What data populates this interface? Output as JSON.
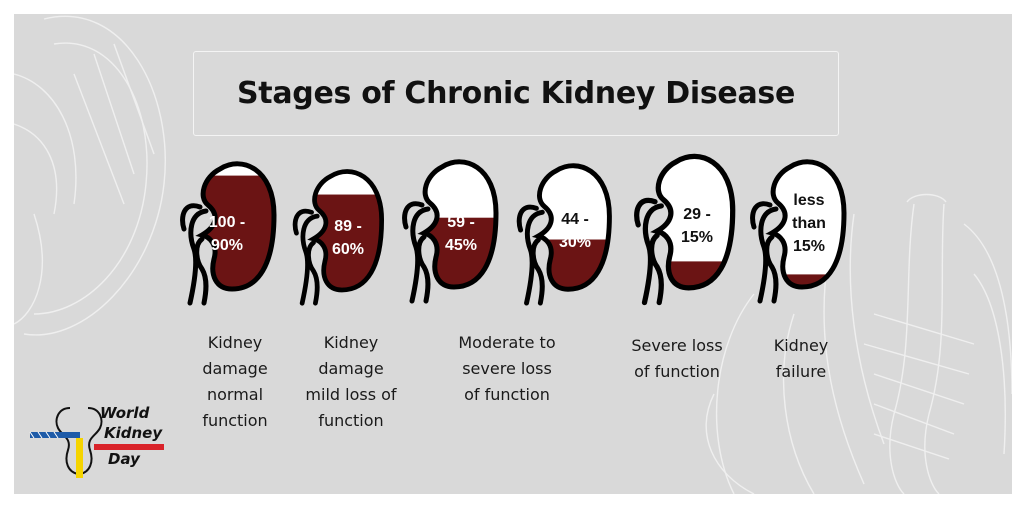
{
  "title": "Stages of Chronic Kidney Disease",
  "colors": {
    "background": "#d9d9d9",
    "kidney_fill": "#6b1414",
    "kidney_outline": "#000000",
    "kidney_empty": "#ffffff"
  },
  "stages": [
    {
      "range_lines": [
        "100 -",
        "90%"
      ],
      "fill_fraction": 0.9,
      "caption_lines": [
        "Kidney",
        "damage",
        "normal",
        "function"
      ]
    },
    {
      "range_lines": [
        "89 -",
        "60%"
      ],
      "fill_fraction": 0.8,
      "caption_lines": [
        "Kidney",
        "damage",
        "mild loss of",
        "function"
      ]
    },
    {
      "range_lines": [
        "59 -",
        "45%"
      ],
      "fill_fraction": 0.55,
      "caption_lines": []
    },
    {
      "range_lines": [
        "44 -",
        "30%"
      ],
      "fill_fraction": 0.4,
      "caption_lines": []
    },
    {
      "range_lines": [
        "29 -",
        "15%"
      ],
      "fill_fraction": 0.2,
      "caption_lines": [
        "Severe loss",
        "of function"
      ]
    },
    {
      "range_lines": [
        "less",
        "than",
        "15%"
      ],
      "fill_fraction": 0.1,
      "caption_lines": [
        "Kidney",
        "failure"
      ]
    }
  ],
  "shared_caption_lines": [
    "Moderate to",
    "severe loss",
    "of function"
  ],
  "logo": {
    "lines": [
      "World",
      "Kidney",
      "Day"
    ],
    "colors": {
      "blue": "#1e5ba8",
      "red": "#d9232a",
      "yellow": "#f5d400"
    }
  }
}
